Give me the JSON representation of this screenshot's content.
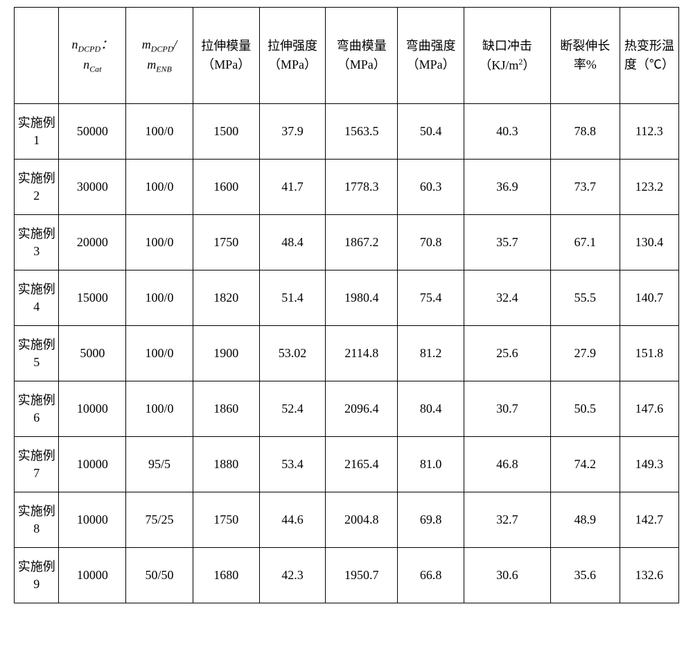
{
  "table": {
    "type": "table",
    "background_color": "#ffffff",
    "border_color": "#000000",
    "text_color": "#000000",
    "font_family": "SimSun, Times New Roman, serif",
    "header_fontsize_pt": 14,
    "body_fontsize_pt": 14,
    "column_widths_pct": [
      6.2,
      9.3,
      9.3,
      9.2,
      9.2,
      10.0,
      9.2,
      12.0,
      9.6,
      8.2
    ],
    "headers": {
      "h0": "",
      "h1_line1": "n",
      "h1_sub1": "DCPD",
      "h1_colon": "：",
      "h1_line2": "n",
      "h1_sub2": "Cat",
      "h2_line1": "m",
      "h2_sub1": "DCPD",
      "h2_slash": "/",
      "h2_line2": "m",
      "h2_sub2": "ENB",
      "h3": "拉伸模量（MPa）",
      "h4": "拉伸强度（MPa）",
      "h5": "弯曲模量（MPa）",
      "h6": "弯曲强度（MPa）",
      "h7_a": "缺口冲击（KJ/m",
      "h7_b": "2",
      "h7_c": "）",
      "h8": "断裂伸长率%",
      "h9": "热变形温度（℃）"
    },
    "rows": [
      {
        "label": "实施例 1",
        "c1": "50000",
        "c2": "100/0",
        "c3": "1500",
        "c4": "37.9",
        "c5": "1563.5",
        "c6": "50.4",
        "c7": "40.3",
        "c8": "78.8",
        "c9": "112.3"
      },
      {
        "label": "实施例 2",
        "c1": "30000",
        "c2": "100/0",
        "c3": "1600",
        "c4": "41.7",
        "c5": "1778.3",
        "c6": "60.3",
        "c7": "36.9",
        "c8": "73.7",
        "c9": "123.2"
      },
      {
        "label": "实施例 3",
        "c1": "20000",
        "c2": "100/0",
        "c3": "1750",
        "c4": "48.4",
        "c5": "1867.2",
        "c6": "70.8",
        "c7": "35.7",
        "c8": "67.1",
        "c9": "130.4"
      },
      {
        "label": "实施例 4",
        "c1": "15000",
        "c2": "100/0",
        "c3": "1820",
        "c4": "51.4",
        "c5": "1980.4",
        "c6": "75.4",
        "c7": "32.4",
        "c8": "55.5",
        "c9": "140.7"
      },
      {
        "label": "实施例 5",
        "c1": "5000",
        "c2": "100/0",
        "c3": "1900",
        "c4": "53.02",
        "c5": "2114.8",
        "c6": "81.2",
        "c7": "25.6",
        "c8": "27.9",
        "c9": "151.8"
      },
      {
        "label": "实施例 6",
        "c1": "10000",
        "c2": "100/0",
        "c3": "1860",
        "c4": "52.4",
        "c5": "2096.4",
        "c6": "80.4",
        "c7": "30.7",
        "c8": "50.5",
        "c9": "147.6"
      },
      {
        "label": "实施例 7",
        "c1": "10000",
        "c2": "95/5",
        "c3": "1880",
        "c4": "53.4",
        "c5": "2165.4",
        "c6": "81.0",
        "c7": "46.8",
        "c8": "74.2",
        "c9": "149.3"
      },
      {
        "label": "实施例 8",
        "c1": "10000",
        "c2": "75/25",
        "c3": "1750",
        "c4": "44.6",
        "c5": "2004.8",
        "c6": "69.8",
        "c7": "32.7",
        "c8": "48.9",
        "c9": "142.7"
      },
      {
        "label": "实施例 9",
        "c1": "10000",
        "c2": "50/50",
        "c3": "1680",
        "c4": "42.3",
        "c5": "1950.7",
        "c6": "66.8",
        "c7": "30.6",
        "c8": "35.6",
        "c9": "132.6"
      }
    ]
  }
}
